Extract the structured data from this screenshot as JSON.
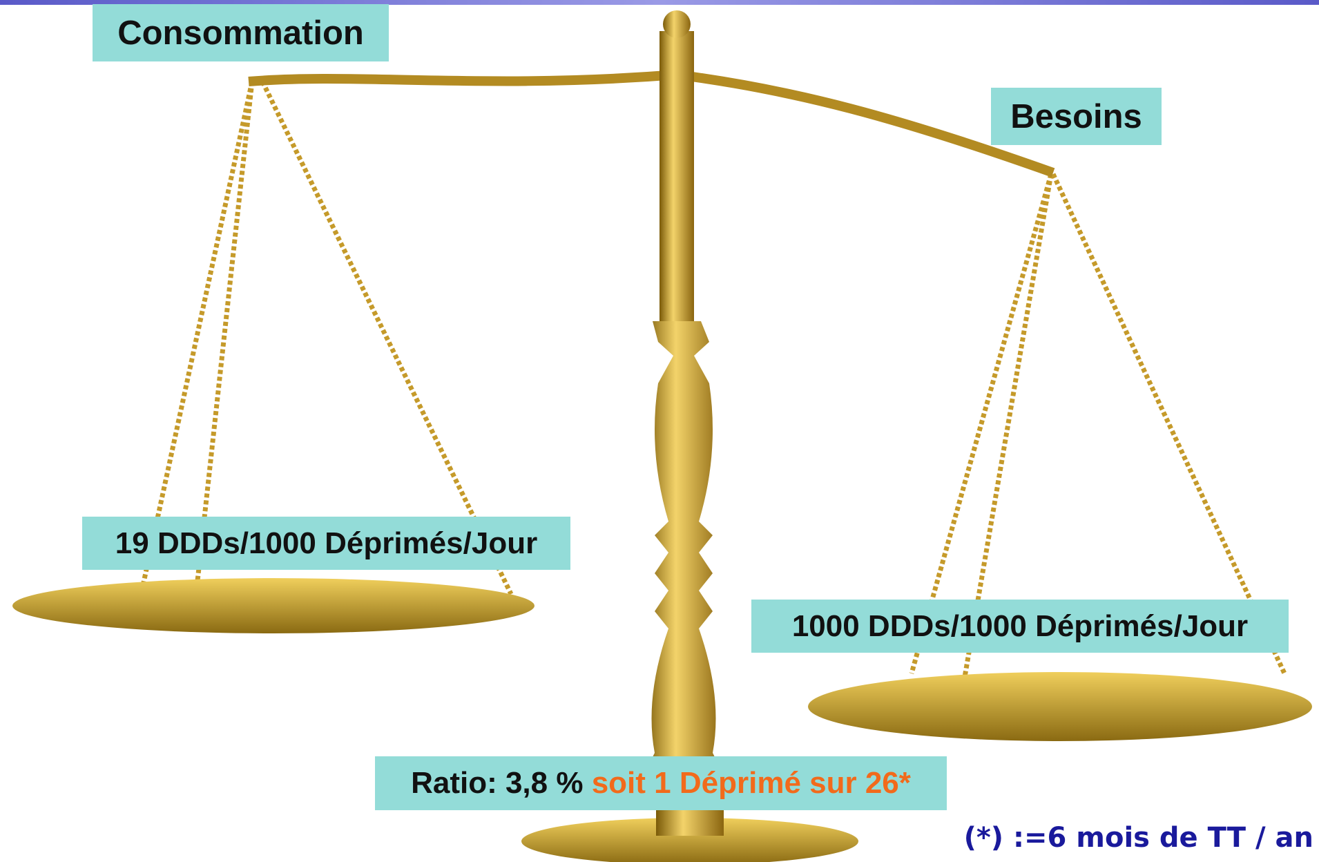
{
  "labels": {
    "left_title": "Consommation",
    "right_title": "Besoins",
    "left_value": "19 DDDs/1000 Déprimés/Jour",
    "right_value": "1000 DDDs/1000 Déprimés/Jour",
    "ratio": "Ratio: 3,8 % ",
    "ratio_detail": "soit 1 Déprimé sur 26*",
    "footnote": "(*) :=6 mois de TT / an"
  }
}
